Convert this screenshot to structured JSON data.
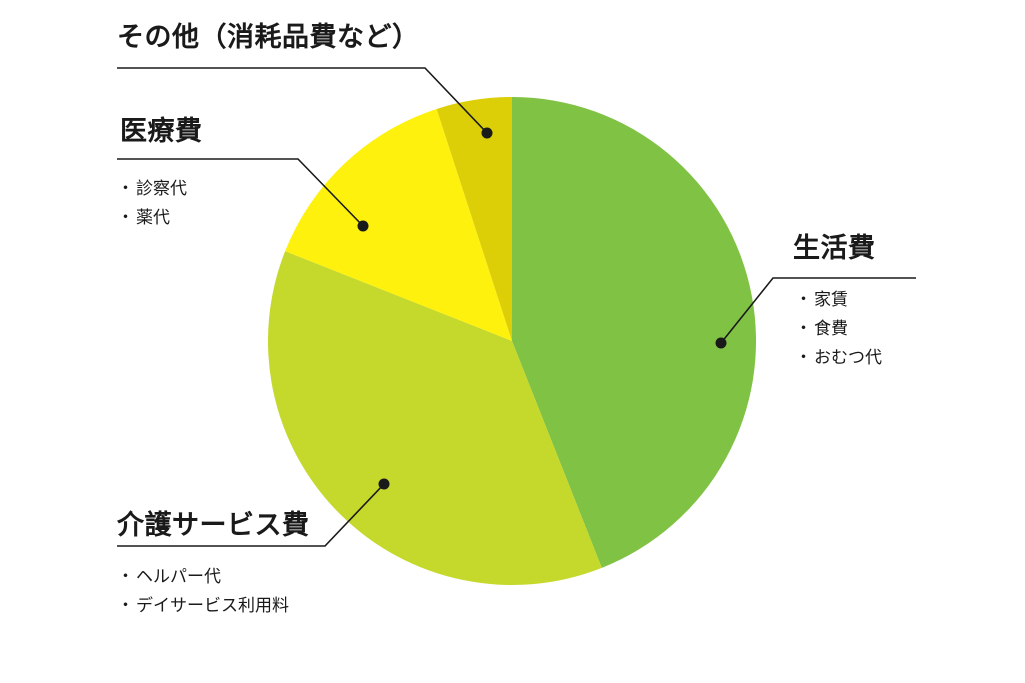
{
  "chart_data": {
    "type": "pie",
    "start_angle_deg": 0,
    "direction": "clockwise",
    "slices": [
      {
        "label": "生活費",
        "value": 44,
        "color": "#7fc244",
        "items": [
          "家賃",
          "食費",
          "おむつ代"
        ]
      },
      {
        "label": "介護サービス費",
        "value": 37,
        "color": "#c5d82c",
        "items": [
          "ヘルパー代",
          "デイサービス利用料"
        ]
      },
      {
        "label": "医療費",
        "value": 14,
        "color": "#fdf10d",
        "items": [
          "診察代",
          "薬代"
        ]
      },
      {
        "label": "その他（消耗品費など）",
        "value": 5,
        "color": "#dccf08",
        "items": []
      }
    ]
  }
}
